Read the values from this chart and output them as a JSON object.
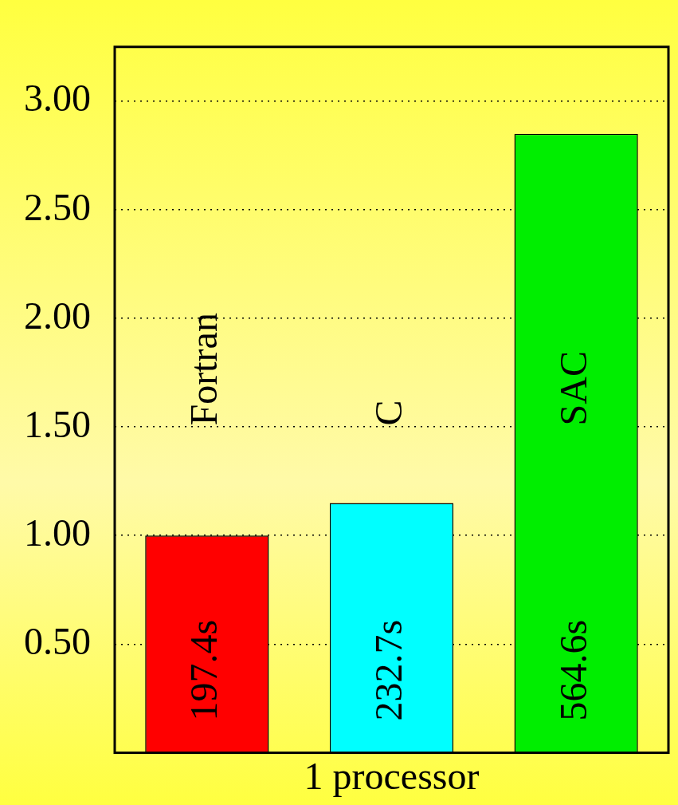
{
  "chart_data": {
    "type": "bar",
    "xlabel": "1 processor",
    "categories": [
      "Fortran",
      "C",
      "SAC"
    ],
    "values": [
      1.0,
      1.15,
      2.85
    ],
    "colors": [
      "#ff0000",
      "#00ffff",
      "#00ee00"
    ],
    "annotations": [
      "197.4s",
      "232.7s",
      "564.6s"
    ],
    "ylim": [
      0,
      3.25
    ],
    "yticks": [
      {
        "value": 0.5,
        "label": "0.50"
      },
      {
        "value": 1.0,
        "label": "1.00"
      },
      {
        "value": 1.5,
        "label": "1.50"
      },
      {
        "value": 2.0,
        "label": "2.00"
      },
      {
        "value": 2.5,
        "label": "2.50"
      },
      {
        "value": 3.0,
        "label": "3.00"
      }
    ],
    "grid": "y",
    "line_style": "dotted",
    "legend": false
  }
}
